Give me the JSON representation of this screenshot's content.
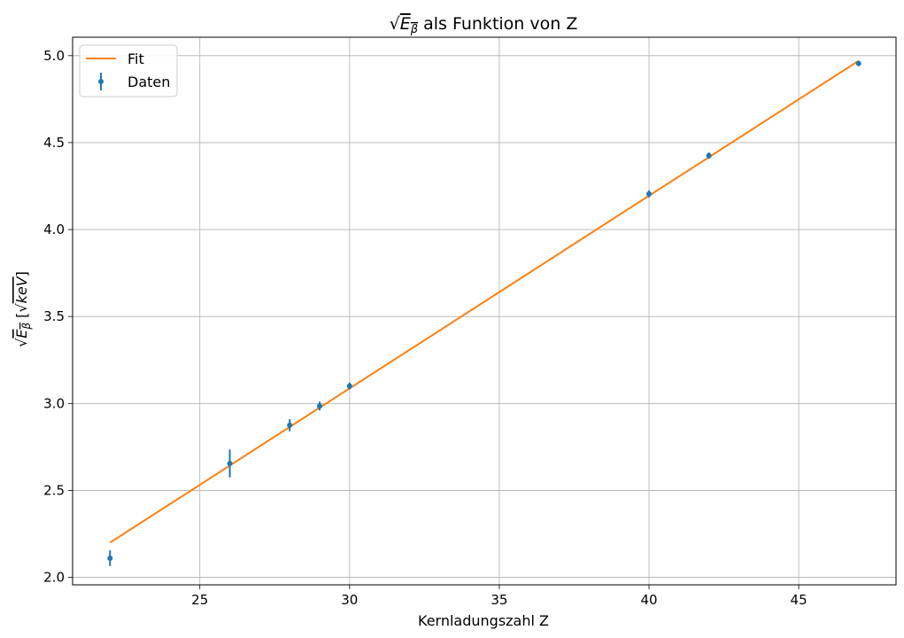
{
  "chart_data": {
    "type": "scatter",
    "title": "√E_β als Funktion von Z",
    "xlabel": "Kernladungszahl Z",
    "ylabel": "√E_β [√keV]",
    "xlim": [
      20.75,
      48.25
    ],
    "ylim": [
      1.957,
      5.106
    ],
    "xticks": [
      "25",
      "30",
      "35",
      "40",
      "45"
    ],
    "yticks": [
      "2.0",
      "2.5",
      "3.0",
      "3.5",
      "4.0",
      "4.5",
      "5.0"
    ],
    "grid": true,
    "legend": {
      "placement": "top-left",
      "entries": [
        "Fit",
        "Daten"
      ]
    },
    "series": [
      {
        "name": "Daten",
        "kind": "errorbar",
        "color": "#1f77b4",
        "x": [
          22,
          26,
          28,
          29,
          30,
          40,
          42,
          47
        ],
        "y": [
          2.11,
          2.655,
          2.875,
          2.985,
          3.1,
          4.205,
          4.425,
          4.955
        ],
        "yerr": [
          0.045,
          0.08,
          0.035,
          0.025,
          0.02,
          0.02,
          0.018,
          0.015
        ]
      },
      {
        "name": "Fit",
        "kind": "line",
        "color": "#ff7f0e",
        "x": [
          22,
          47
        ],
        "y": [
          2.2,
          4.97
        ]
      }
    ]
  }
}
